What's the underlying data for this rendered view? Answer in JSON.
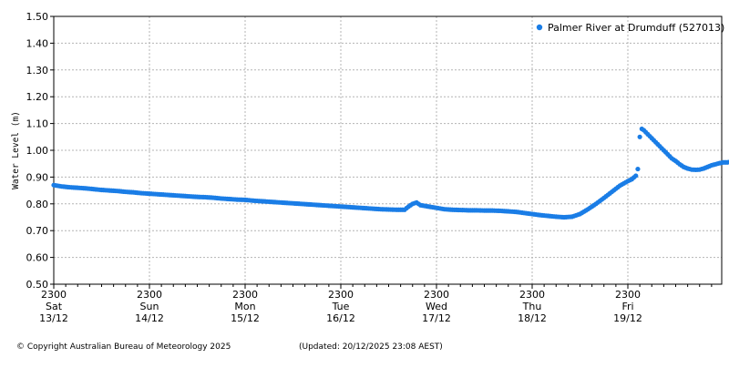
{
  "chart_data": {
    "type": "scatter",
    "ylabel": "Water Level (m)",
    "ylim": [
      0.5,
      1.5
    ],
    "yticks": [
      "0.50",
      "0.60",
      "0.70",
      "0.80",
      "0.90",
      "1.00",
      "1.10",
      "1.20",
      "1.30",
      "1.40",
      "1.50"
    ],
    "xlim_hours": [
      0,
      168
    ],
    "xticks": [
      {
        "time": "2300",
        "day": "Sat",
        "date": "13/12"
      },
      {
        "time": "2300",
        "day": "Sun",
        "date": "14/12"
      },
      {
        "time": "2300",
        "day": "Mon",
        "date": "15/12"
      },
      {
        "time": "2300",
        "day": "Tue",
        "date": "16/12"
      },
      {
        "time": "2300",
        "day": "Wed",
        "date": "17/12"
      },
      {
        "time": "2300",
        "day": "Thu",
        "date": "18/12"
      },
      {
        "time": "2300",
        "day": "Fri",
        "date": "19/12"
      }
    ],
    "grid": true,
    "legend_position": "top-right",
    "series": [
      {
        "name": "Palmer River at Drumduff (527013)",
        "color": "#1a7de6",
        "points": [
          [
            0,
            0.87
          ],
          [
            2,
            0.865
          ],
          [
            4,
            0.862
          ],
          [
            6,
            0.86
          ],
          [
            8,
            0.858
          ],
          [
            10,
            0.855
          ],
          [
            12,
            0.852
          ],
          [
            14,
            0.85
          ],
          [
            16,
            0.848
          ],
          [
            18,
            0.845
          ],
          [
            20,
            0.843
          ],
          [
            22,
            0.84
          ],
          [
            24,
            0.838
          ],
          [
            26,
            0.836
          ],
          [
            28,
            0.834
          ],
          [
            30,
            0.832
          ],
          [
            32,
            0.83
          ],
          [
            34,
            0.828
          ],
          [
            36,
            0.826
          ],
          [
            38,
            0.825
          ],
          [
            40,
            0.823
          ],
          [
            42,
            0.82
          ],
          [
            44,
            0.818
          ],
          [
            46,
            0.816
          ],
          [
            48,
            0.815
          ],
          [
            50,
            0.812
          ],
          [
            52,
            0.81
          ],
          [
            54,
            0.808
          ],
          [
            56,
            0.806
          ],
          [
            58,
            0.804
          ],
          [
            60,
            0.802
          ],
          [
            62,
            0.8
          ],
          [
            64,
            0.798
          ],
          [
            66,
            0.796
          ],
          [
            68,
            0.794
          ],
          [
            70,
            0.792
          ],
          [
            72,
            0.79
          ],
          [
            74,
            0.788
          ],
          [
            76,
            0.786
          ],
          [
            78,
            0.784
          ],
          [
            80,
            0.782
          ],
          [
            82,
            0.78
          ],
          [
            84,
            0.779
          ],
          [
            86,
            0.778
          ],
          [
            88,
            0.778
          ],
          [
            89,
            0.79
          ],
          [
            90,
            0.8
          ],
          [
            91,
            0.805
          ],
          [
            92,
            0.795
          ],
          [
            94,
            0.79
          ],
          [
            96,
            0.785
          ],
          [
            98,
            0.78
          ],
          [
            100,
            0.778
          ],
          [
            102,
            0.777
          ],
          [
            104,
            0.776
          ],
          [
            106,
            0.776
          ],
          [
            108,
            0.775
          ],
          [
            110,
            0.775
          ],
          [
            112,
            0.774
          ],
          [
            114,
            0.772
          ],
          [
            116,
            0.77
          ],
          [
            118,
            0.766
          ],
          [
            120,
            0.762
          ],
          [
            122,
            0.758
          ],
          [
            124,
            0.755
          ],
          [
            126,
            0.752
          ],
          [
            128,
            0.75
          ],
          [
            130,
            0.752
          ],
          [
            132,
            0.762
          ],
          [
            134,
            0.78
          ],
          [
            136,
            0.8
          ],
          [
            138,
            0.822
          ],
          [
            140,
            0.845
          ],
          [
            142,
            0.868
          ],
          [
            144,
            0.885
          ],
          [
            145,
            0.892
          ],
          [
            146,
            0.905
          ],
          [
            146.5,
            0.93
          ],
          [
            147,
            1.05
          ],
          [
            147.5,
            1.08
          ],
          [
            148,
            1.075
          ],
          [
            149,
            1.06
          ],
          [
            150,
            1.045
          ],
          [
            151,
            1.03
          ],
          [
            152,
            1.015
          ],
          [
            153,
            1.0
          ],
          [
            154,
            0.985
          ],
          [
            155,
            0.97
          ],
          [
            156,
            0.96
          ],
          [
            157,
            0.948
          ],
          [
            158,
            0.938
          ],
          [
            159,
            0.932
          ],
          [
            160,
            0.928
          ],
          [
            161,
            0.927
          ],
          [
            162,
            0.928
          ],
          [
            163,
            0.932
          ],
          [
            164,
            0.938
          ],
          [
            165,
            0.944
          ],
          [
            166,
            0.948
          ],
          [
            167,
            0.952
          ],
          [
            168,
            0.955
          ],
          [
            169,
            0.955
          ],
          [
            170,
            0.957
          ],
          [
            171,
            0.958
          ],
          [
            172,
            0.985
          ],
          [
            173,
            0.988
          ]
        ]
      }
    ],
    "copyright": "© Copyright Australian Bureau of Meteorology 2025",
    "updated": "(Updated: 20/12/2025 23:08 AEST)"
  }
}
